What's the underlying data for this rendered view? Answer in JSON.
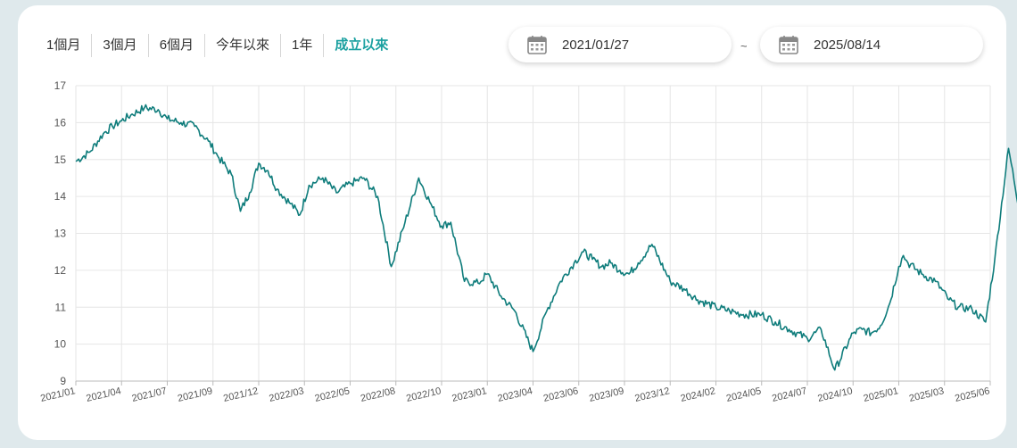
{
  "tabs": [
    {
      "label": "1個月",
      "active": false
    },
    {
      "label": "3個月",
      "active": false
    },
    {
      "label": "6個月",
      "active": false
    },
    {
      "label": "今年以來",
      "active": false
    },
    {
      "label": "1年",
      "active": false
    },
    {
      "label": "成立以來",
      "active": true
    }
  ],
  "date_range": {
    "start": "2021/01/27",
    "separator": "~",
    "end": "2025/08/14"
  },
  "colors": {
    "accent": "#1aa0a0",
    "line": "#0e7c7b",
    "grid": "#e6e6e6"
  },
  "icons": {
    "date_picker": "calendar-icon"
  },
  "chart_data": {
    "type": "line",
    "ylim": [
      9,
      17
    ],
    "yticks": [
      9,
      10,
      11,
      12,
      13,
      14,
      15,
      16,
      17
    ],
    "x_tick_labels": [
      "2021/01",
      "2021/04",
      "2021/07",
      "2021/09",
      "2021/12",
      "2022/03",
      "2022/05",
      "2022/08",
      "2022/10",
      "2023/01",
      "2023/04",
      "2023/06",
      "2023/09",
      "2023/12",
      "2024/02",
      "2024/05",
      "2024/07",
      "2024/10",
      "2025/01",
      "2025/03",
      "2025/06"
    ],
    "series": [
      {
        "x": [
          0,
          0.3,
          0.6,
          0.8,
          1.0,
          1.2,
          1.5,
          1.8,
          2.0,
          2.3,
          2.6,
          2.9,
          3.1,
          3.4,
          3.6,
          3.8,
          4.0,
          4.2,
          4.4,
          4.7,
          4.9,
          5.1,
          5.4,
          5.7,
          6.0,
          6.3,
          6.6,
          6.9,
          7.2,
          7.5,
          7.8,
          8.0,
          8.2,
          8.5,
          8.8,
          9.0,
          9.3,
          9.6,
          10.0,
          10.3,
          10.6,
          10.9,
          11.1,
          11.3,
          11.5,
          11.7,
          11.9,
          12.1,
          12.3,
          12.6,
          13.0,
          13.3,
          13.6,
          14.0,
          14.3,
          14.6,
          15.0,
          15.3,
          15.6,
          16.0,
          16.3,
          16.6,
          17.0,
          17.2,
          17.4,
          17.6,
          17.8,
          18.0,
          18.1,
          18.2,
          18.5,
          18.8,
          19.1,
          19.3,
          19.6,
          19.9,
          20.1,
          20.4,
          20.7,
          21.0
        ],
        "y": [
          14.95,
          15.2,
          15.7,
          15.9,
          16.05,
          16.2,
          16.4,
          16.35,
          16.1,
          16.0,
          15.9,
          15.5,
          15.1,
          14.6,
          13.6,
          14.1,
          14.9,
          14.7,
          14.2,
          13.8,
          13.5,
          14.3,
          14.5,
          14.1,
          14.35,
          14.5,
          14.0,
          12.1,
          13.3,
          14.5,
          13.7,
          13.2,
          13.3,
          11.7,
          11.65,
          11.9,
          11.3,
          10.9,
          9.8,
          10.9,
          11.7,
          12.2,
          12.5,
          12.3,
          12.1,
          12.2,
          12.0,
          11.9,
          12.2,
          12.7,
          11.7,
          11.5,
          11.2,
          11.0,
          10.9,
          10.8,
          10.8,
          10.6,
          10.4,
          10.15,
          10.4,
          9.3,
          10.3,
          10.4,
          10.3,
          10.5,
          11.1,
          12.1,
          12.4,
          12.2,
          11.9,
          11.7,
          11.2,
          11.0,
          10.95,
          10.6,
          12.3,
          15.3,
          13.2,
          13.0
        ]
      }
    ]
  }
}
